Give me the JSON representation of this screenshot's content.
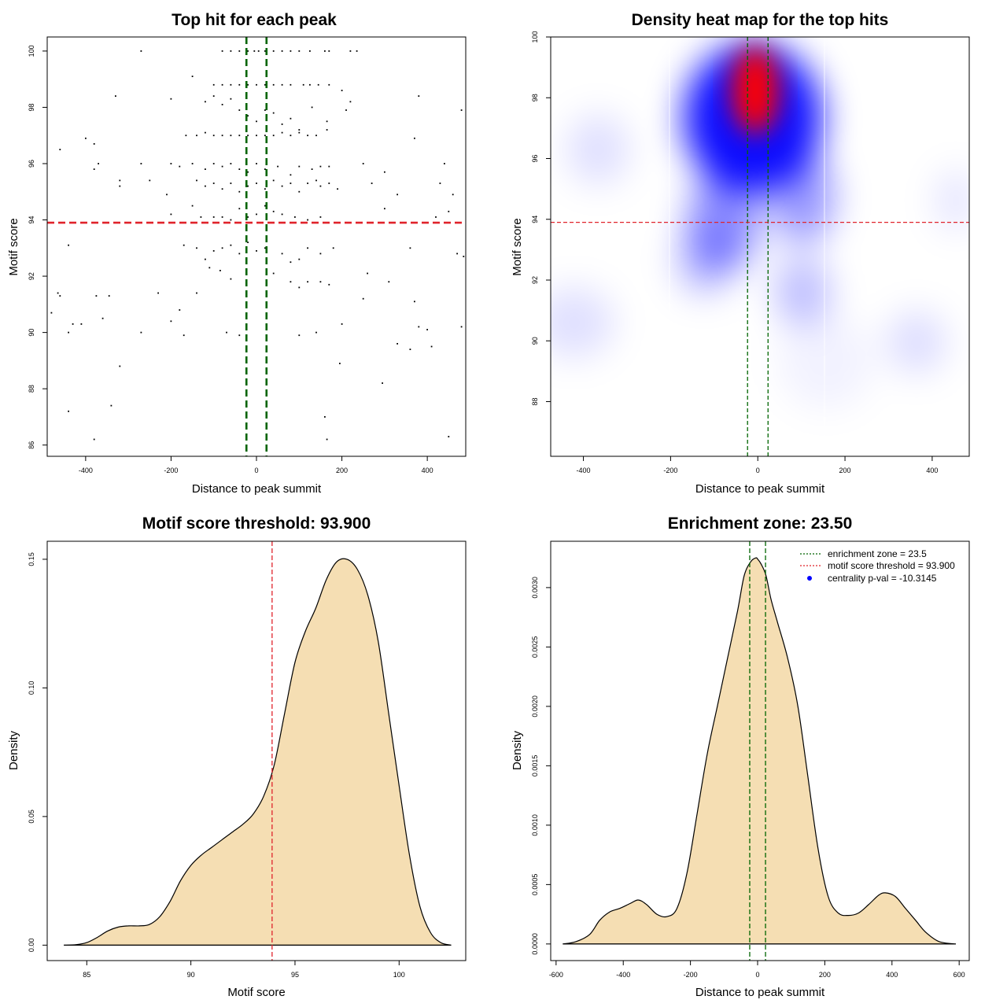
{
  "chart_data": [
    {
      "type": "scatter",
      "title": "Top hit for each peak",
      "xlabel": "Distance to peak summit",
      "ylabel": "Motif score",
      "xlim": [
        -490,
        490
      ],
      "ylim": [
        85.6,
        100.5
      ],
      "xticks": [
        -400,
        -200,
        0,
        200,
        400
      ],
      "yticks": [
        86,
        88,
        90,
        92,
        94,
        96,
        98,
        100
      ],
      "xticklabels": [
        "-400",
        "-200",
        "0",
        "200",
        "400"
      ],
      "yticklabels": [
        "86",
        "88",
        "90",
        "92",
        "94",
        "96",
        "98",
        "100"
      ],
      "vlines": [
        -23.5,
        23.5
      ],
      "hline": 93.9,
      "colors": {
        "points": "#000000",
        "vlines": "#006400",
        "hline": "#e0232b"
      },
      "points": [
        [
          -270,
          100
        ],
        [
          -80,
          100
        ],
        [
          -60,
          100
        ],
        [
          -40,
          100
        ],
        [
          -20,
          100
        ],
        [
          -5,
          100
        ],
        [
          5,
          100
        ],
        [
          20,
          100
        ],
        [
          40,
          100
        ],
        [
          60,
          100
        ],
        [
          80,
          100
        ],
        [
          100,
          100
        ],
        [
          125,
          100
        ],
        [
          160,
          100
        ],
        [
          170,
          100
        ],
        [
          220,
          100
        ],
        [
          235,
          100
        ],
        [
          -200,
          98.3
        ],
        [
          -150,
          99.1
        ],
        [
          -100,
          98.8
        ],
        [
          -80,
          98.8
        ],
        [
          -60,
          98.8
        ],
        [
          -40,
          98.8
        ],
        [
          -20,
          98.8
        ],
        [
          0,
          98.8
        ],
        [
          20,
          98.8
        ],
        [
          40,
          98.8
        ],
        [
          60,
          98.8
        ],
        [
          80,
          98.8
        ],
        [
          110,
          98.8
        ],
        [
          125,
          98.8
        ],
        [
          145,
          98.8
        ],
        [
          170,
          98.8
        ],
        [
          200,
          98.6
        ],
        [
          220,
          98.2
        ],
        [
          380,
          98.4
        ],
        [
          480,
          97.9
        ],
        [
          -330,
          98.4
        ],
        [
          -120,
          98.2
        ],
        [
          -100,
          98.4
        ],
        [
          -80,
          98.1
        ],
        [
          -60,
          98.3
        ],
        [
          -40,
          97.9
        ],
        [
          -20,
          97.7
        ],
        [
          0,
          97.5
        ],
        [
          20,
          97.9
        ],
        [
          40,
          97.8
        ],
        [
          60,
          97.4
        ],
        [
          80,
          97.6
        ],
        [
          100,
          97.2
        ],
        [
          130,
          98.0
        ],
        [
          165,
          97.5
        ],
        [
          210,
          97.9
        ],
        [
          -165,
          97.0
        ],
        [
          -140,
          97.0
        ],
        [
          -120,
          97.1
        ],
        [
          -100,
          97.0
        ],
        [
          -80,
          97.0
        ],
        [
          -60,
          97.0
        ],
        [
          -40,
          97.0
        ],
        [
          -20,
          97.0
        ],
        [
          0,
          97.0
        ],
        [
          20,
          97.0
        ],
        [
          40,
          97.0
        ],
        [
          60,
          97.1
        ],
        [
          80,
          97.0
        ],
        [
          100,
          97.1
        ],
        [
          120,
          97.0
        ],
        [
          140,
          97.0
        ],
        [
          165,
          97.2
        ],
        [
          370,
          96.9
        ],
        [
          -400,
          96.9
        ],
        [
          -380,
          96.7
        ],
        [
          -460,
          96.5
        ],
        [
          -370,
          96.0
        ],
        [
          -380,
          95.8
        ],
        [
          -270,
          96.0
        ],
        [
          -200,
          96.0
        ],
        [
          -180,
          95.9
        ],
        [
          -150,
          96.0
        ],
        [
          -120,
          95.8
        ],
        [
          -100,
          96.0
        ],
        [
          -80,
          95.9
        ],
        [
          -60,
          96.0
        ],
        [
          -40,
          95.8
        ],
        [
          -20,
          95.7
        ],
        [
          0,
          96.0
        ],
        [
          20,
          95.8
        ],
        [
          50,
          95.9
        ],
        [
          80,
          95.6
        ],
        [
          100,
          95.9
        ],
        [
          130,
          95.8
        ],
        [
          150,
          95.9
        ],
        [
          170,
          95.9
        ],
        [
          250,
          96.0
        ],
        [
          300,
          95.7
        ],
        [
          440,
          96.0
        ],
        [
          430,
          95.3
        ],
        [
          -320,
          95.4
        ],
        [
          -320,
          95.2
        ],
        [
          -250,
          95.4
        ],
        [
          -210,
          94.9
        ],
        [
          -140,
          95.4
        ],
        [
          -120,
          95.2
        ],
        [
          -100,
          95.3
        ],
        [
          -80,
          95.1
        ],
        [
          -60,
          95.3
        ],
        [
          -40,
          95.0
        ],
        [
          -20,
          95.2
        ],
        [
          0,
          95.3
        ],
        [
          20,
          95.1
        ],
        [
          40,
          95.4
        ],
        [
          60,
          95.2
        ],
        [
          80,
          95.3
        ],
        [
          100,
          95.0
        ],
        [
          120,
          95.3
        ],
        [
          140,
          95.4
        ],
        [
          150,
          95.2
        ],
        [
          170,
          95.3
        ],
        [
          190,
          95.1
        ],
        [
          270,
          95.3
        ],
        [
          330,
          94.9
        ],
        [
          460,
          94.9
        ],
        [
          -200,
          94.2
        ],
        [
          -150,
          94.5
        ],
        [
          -130,
          94.1
        ],
        [
          -100,
          94.1
        ],
        [
          -80,
          94.1
        ],
        [
          -60,
          94.0
        ],
        [
          -40,
          94.4
        ],
        [
          -20,
          94.1
        ],
        [
          0,
          94.2
        ],
        [
          20,
          94.5
        ],
        [
          40,
          94.3
        ],
        [
          60,
          94.2
        ],
        [
          90,
          94.1
        ],
        [
          120,
          94.0
        ],
        [
          150,
          94.1
        ],
        [
          300,
          94.4
        ],
        [
          420,
          94.1
        ],
        [
          450,
          94.3
        ],
        [
          -440,
          93.1
        ],
        [
          -170,
          93.1
        ],
        [
          -140,
          93.0
        ],
        [
          -120,
          92.6
        ],
        [
          -100,
          92.9
        ],
        [
          -80,
          93.0
        ],
        [
          -60,
          93.1
        ],
        [
          -40,
          92.8
        ],
        [
          -20,
          93.2
        ],
        [
          0,
          92.9
        ],
        [
          20,
          93.0
        ],
        [
          40,
          92.1
        ],
        [
          60,
          92.8
        ],
        [
          80,
          92.5
        ],
        [
          100,
          92.6
        ],
        [
          120,
          93.0
        ],
        [
          150,
          92.8
        ],
        [
          180,
          93.0
        ],
        [
          260,
          92.1
        ],
        [
          310,
          91.8
        ],
        [
          360,
          93.0
        ],
        [
          470,
          92.8
        ],
        [
          485,
          92.7
        ],
        [
          -465,
          91.4
        ],
        [
          -460,
          91.3
        ],
        [
          -375,
          91.3
        ],
        [
          -345,
          91.3
        ],
        [
          -230,
          91.4
        ],
        [
          -140,
          91.4
        ],
        [
          -110,
          92.3
        ],
        [
          -85,
          92.2
        ],
        [
          -60,
          91.9
        ],
        [
          80,
          91.8
        ],
        [
          100,
          91.6
        ],
        [
          120,
          91.8
        ],
        [
          150,
          91.8
        ],
        [
          170,
          91.7
        ],
        [
          250,
          91.2
        ],
        [
          370,
          91.1
        ],
        [
          -480,
          90.7
        ],
        [
          -430,
          90.3
        ],
        [
          -410,
          90.3
        ],
        [
          -360,
          90.5
        ],
        [
          -270,
          90.0
        ],
        [
          -200,
          90.4
        ],
        [
          -180,
          90.8
        ],
        [
          -170,
          89.9
        ],
        [
          -70,
          90.0
        ],
        [
          -40,
          89.9
        ],
        [
          100,
          89.9
        ],
        [
          140,
          90.0
        ],
        [
          200,
          90.3
        ],
        [
          330,
          89.6
        ],
        [
          360,
          89.4
        ],
        [
          380,
          90.2
        ],
        [
          400,
          90.1
        ],
        [
          410,
          89.5
        ],
        [
          480,
          90.2
        ],
        [
          -440,
          90.0
        ],
        [
          -320,
          88.8
        ],
        [
          195,
          88.9
        ],
        [
          295,
          88.2
        ],
        [
          -340,
          87.4
        ],
        [
          -440,
          87.2
        ],
        [
          160,
          87.0
        ],
        [
          -380,
          86.2
        ],
        [
          165,
          86.2
        ],
        [
          450,
          86.3
        ]
      ]
    },
    {
      "type": "heatmap",
      "title": "Density heat map for the top hits",
      "xlabel": "Distance to peak summit",
      "ylabel": "Motif score",
      "xlim": [
        -475,
        485
      ],
      "ylim": [
        86.2,
        100
      ],
      "xticks": [
        -400,
        -200,
        0,
        200,
        400
      ],
      "yticks": [
        88,
        90,
        92,
        94,
        96,
        98,
        100
      ],
      "xticklabels": [
        "-400",
        "-200",
        "0",
        "200",
        "400"
      ],
      "yticklabels": [
        "88",
        "90",
        "92",
        "94",
        "96",
        "98",
        "100"
      ],
      "vlines": [
        -23.5,
        23.5
      ],
      "hline": 93.9,
      "colors": {
        "low": "#ffffff",
        "mid": "#0000ff",
        "high": "#ff0000",
        "vlines": "#006400",
        "hline": "#e0232b"
      }
    },
    {
      "type": "area",
      "title": "Motif score threshold: 93.900",
      "xlabel": "Motif score",
      "ylabel": "Density",
      "xlim": [
        83.1,
        103.2
      ],
      "ylim": [
        -0.006,
        0.157
      ],
      "xticks": [
        85,
        90,
        95,
        100
      ],
      "yticks": [
        0,
        0.05,
        0.1,
        0.15
      ],
      "xticklabels": [
        "85",
        "90",
        "95",
        "100"
      ],
      "yticklabels": [
        "0.00",
        "0.05",
        "0.10",
        "0.15"
      ],
      "vlines": [
        93.9
      ],
      "colors": {
        "fill": "#f5deb3",
        "line": "#000000",
        "vline": "#e0232b"
      },
      "x": [
        83.9,
        84.5,
        85,
        85.5,
        86,
        86.5,
        87,
        87.5,
        88,
        88.5,
        89,
        89.5,
        90,
        90.5,
        91,
        91.5,
        92,
        92.5,
        93,
        93.5,
        94,
        94.5,
        95,
        95.5,
        96,
        96.5,
        97,
        97.5,
        98,
        98.5,
        99,
        99.5,
        100,
        100.5,
        101,
        101.5,
        102,
        102.5
      ],
      "y": [
        0,
        0.0002,
        0.001,
        0.003,
        0.0055,
        0.007,
        0.0075,
        0.0075,
        0.008,
        0.011,
        0.017,
        0.025,
        0.031,
        0.035,
        0.038,
        0.041,
        0.044,
        0.047,
        0.051,
        0.058,
        0.07,
        0.09,
        0.11,
        0.122,
        0.131,
        0.142,
        0.149,
        0.15,
        0.146,
        0.136,
        0.118,
        0.09,
        0.062,
        0.035,
        0.015,
        0.005,
        0.001,
        0
      ]
    },
    {
      "type": "area",
      "title": "Enrichment zone: 23.50",
      "xlabel": "Distance to peak summit",
      "ylabel": "Density",
      "xlim": [
        -616,
        630
      ],
      "ylim": [
        -0.00014,
        0.00339
      ],
      "xticks": [
        -600,
        -400,
        -200,
        0,
        200,
        400,
        600
      ],
      "yticks": [
        0,
        0.0005,
        0.001,
        0.0015,
        0.002,
        0.0025,
        0.003
      ],
      "xticklabels": [
        "-600",
        "-400",
        "-200",
        "0",
        "200",
        "400",
        "600"
      ],
      "yticklabels": [
        "0.0000",
        "0.0005",
        "0.0010",
        "0.0015",
        "0.0020",
        "0.0025",
        "0.0030"
      ],
      "vlines": [
        -23.5,
        23.5
      ],
      "colors": {
        "fill": "#f5deb3",
        "line": "#000000",
        "vline": "#006400"
      },
      "legend": {
        "position": "top-right",
        "items": [
          {
            "label": "enrichment zone = 23.5",
            "color": "#006400",
            "style": "dotted-line"
          },
          {
            "label": "motif score threshold = 93.900",
            "color": "#e0232b",
            "style": "dotted-line"
          },
          {
            "label": "centrality p-val = -10.3145",
            "color": "#0000ff",
            "style": "point"
          }
        ]
      },
      "x": [
        -580,
        -540,
        -500,
        -470,
        -440,
        -410,
        -380,
        -355,
        -330,
        -300,
        -270,
        -240,
        -210,
        -180,
        -150,
        -120,
        -90,
        -60,
        -40,
        -20,
        -5,
        0,
        10,
        25,
        40,
        60,
        90,
        120,
        150,
        180,
        210,
        240,
        270,
        300,
        330,
        360,
        380,
        410,
        440,
        470,
        500,
        540,
        590
      ],
      "y": [
        0,
        2e-05,
        8e-05,
        0.0002,
        0.00027,
        0.0003,
        0.00034,
        0.00037,
        0.00033,
        0.00025,
        0.00023,
        0.0003,
        0.0006,
        0.0011,
        0.0016,
        0.002,
        0.0024,
        0.0028,
        0.0031,
        0.00322,
        0.00325,
        0.00324,
        0.0032,
        0.0031,
        0.0029,
        0.0027,
        0.0024,
        0.002,
        0.0014,
        0.0008,
        0.0004,
        0.00026,
        0.00024,
        0.00026,
        0.00033,
        0.00041,
        0.00043,
        0.0004,
        0.0003,
        0.0002,
        0.0001,
        2e-05,
        0
      ]
    }
  ]
}
